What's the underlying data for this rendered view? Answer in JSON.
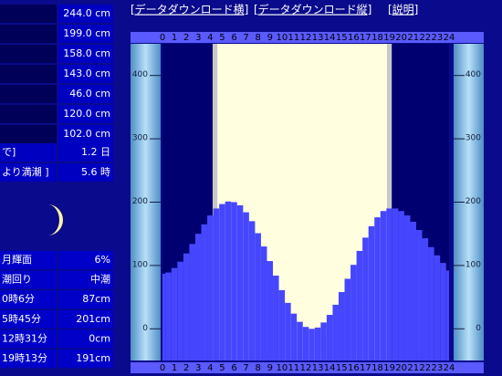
{
  "links": [
    "[データダウンロード横]",
    "[データダウンロード縦]",
    "[説明]"
  ],
  "levels": [
    "244.0 cm",
    "199.0 cm",
    "158.0 cm",
    "143.0 cm",
    "46.0 cm",
    "120.0 cm",
    "102.0 cm"
  ],
  "moon_rows": [
    {
      "label": "で]",
      "value": "1.2 日"
    },
    {
      "label": "より満潮 ]",
      "value": "5.6 時"
    }
  ],
  "info_rows": [
    {
      "label": "月輝面",
      "value": "6%"
    },
    {
      "label": "潮回り",
      "value": "中潮"
    },
    {
      "label": "0時6分",
      "value": "87cm"
    },
    {
      "label": "5時45分",
      "value": "201cm"
    },
    {
      "label": "12時31分",
      "value": "0cm"
    },
    {
      "label": "19時13分",
      "value": "191cm"
    }
  ],
  "chart_data": {
    "type": "bar",
    "color": "#4646ff",
    "x": [
      0,
      0.5,
      1,
      1.5,
      2,
      2.5,
      3,
      3.5,
      4,
      4.5,
      5,
      5.5,
      6,
      6.5,
      7,
      7.5,
      8,
      8.5,
      9,
      9.5,
      10,
      10.5,
      11,
      11.5,
      12,
      12.5,
      13,
      13.5,
      14,
      14.5,
      15,
      15.5,
      16,
      16.5,
      17,
      17.5,
      18,
      18.5,
      19,
      19.5,
      20,
      20.5,
      21,
      21.5,
      22,
      22.5,
      23,
      23.5,
      24
    ],
    "values": [
      87,
      89,
      96,
      106,
      119,
      134,
      150,
      165,
      179,
      190,
      197,
      201,
      200,
      195,
      184,
      170,
      151,
      130,
      107,
      84,
      61,
      41,
      24,
      11,
      3,
      0,
      2,
      10,
      22,
      38,
      58,
      79,
      101,
      123,
      144,
      162,
      176,
      186,
      190,
      190,
      186,
      179,
      169,
      156,
      143,
      129,
      116,
      104,
      92
    ],
    "xlim": [
      0,
      24
    ],
    "xticks": [
      0,
      1,
      2,
      3,
      4,
      5,
      6,
      7,
      8,
      9,
      10,
      11,
      12,
      13,
      14,
      15,
      16,
      17,
      18,
      19,
      20,
      21,
      22,
      23,
      24
    ],
    "ylim": [
      -50,
      450
    ],
    "yticks": [
      0,
      100,
      200,
      300,
      400
    ],
    "twilight": [
      4.2,
      19.2
    ],
    "daylight": [
      4.6,
      18.8
    ]
  }
}
